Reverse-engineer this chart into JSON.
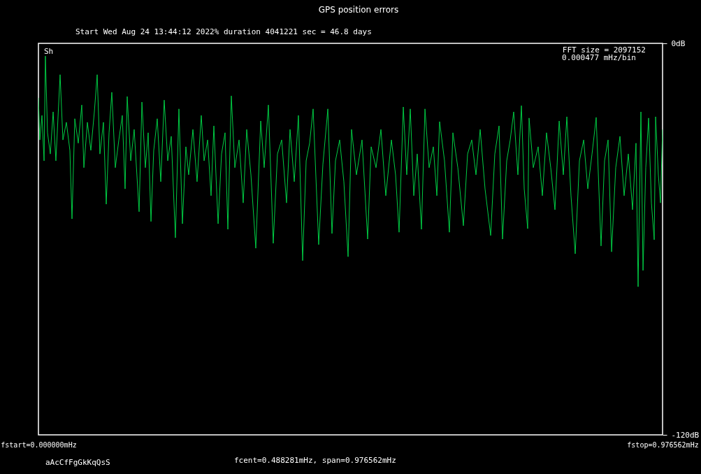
{
  "chart_data": {
    "type": "line",
    "title": "GPS position errors",
    "subtitle": "Start Wed Aug 24 13:44:12 2022%      duration 4041221 sec =  46.8 days",
    "annotations": [
      "Sh",
      "FFT size = 2097152",
      "0.000477 mHz/bin",
      "aAcCfFgGkKqQsS",
      "fcent=0.488281mHz, span=0.976562mHz"
    ],
    "xlim": [
      0,
      0.976562
    ],
    "ylim": [
      -120,
      0
    ],
    "xticks": [
      {
        "value": 0,
        "label": "fstart=0.000000mHz"
      },
      {
        "value": 0.976562,
        "label": "fstop=0.976562mHz"
      }
    ],
    "yticks": [
      {
        "value": -120,
        "label": "-120dB"
      },
      {
        "value": 0,
        "label": "0dB"
      }
    ],
    "grid": false,
    "marker": "none",
    "line_style": "solid",
    "x": [
      0,
      0.0022,
      0.0055,
      0.0088,
      0.0109,
      0.0142,
      0.0186,
      0.023,
      0.0273,
      0.0339,
      0.0383,
      0.0437,
      0.0492,
      0.0525,
      0.0569,
      0.0623,
      0.0678,
      0.0711,
      0.0766,
      0.082,
      0.0875,
      0.0919,
      0.0962,
      0.1017,
      0.1061,
      0.1105,
      0.1148,
      0.1203,
      0.1258,
      0.1312,
      0.1356,
      0.1389,
      0.1444,
      0.1498,
      0.1575,
      0.1619,
      0.1673,
      0.1717,
      0.1761,
      0.1804,
      0.1859,
      0.1914,
      0.1968,
      0.2023,
      0.2078,
      0.2143,
      0.2198,
      0.2253,
      0.2307,
      0.2351,
      0.2417,
      0.2482,
      0.2548,
      0.2592,
      0.2647,
      0.2701,
      0.2745,
      0.2811,
      0.2865,
      0.292,
      0.2964,
      0.3018,
      0.3073,
      0.3139,
      0.3204,
      0.3259,
      0.3325,
      0.3401,
      0.3478,
      0.3532,
      0.3598,
      0.3674,
      0.374,
      0.3806,
      0.3882,
      0.3937,
      0.4003,
      0.4068,
      0.4134,
      0.4189,
      0.4243,
      0.4298,
      0.4385,
      0.4451,
      0.4528,
      0.4593,
      0.4648,
      0.4713,
      0.4779,
      0.4845,
      0.4899,
      0.4976,
      0.5063,
      0.5151,
      0.5206,
      0.5282,
      0.5359,
      0.5435,
      0.5523,
      0.5588,
      0.5643,
      0.5709,
      0.5763,
      0.5818,
      0.5873,
      0.5927,
      0.5993,
      0.6048,
      0.6113,
      0.6179,
      0.6234,
      0.6277,
      0.6354,
      0.643,
      0.6485,
      0.6562,
      0.6649,
      0.6715,
      0.678,
      0.6846,
      0.6912,
      0.6988,
      0.7076,
      0.7141,
      0.7207,
      0.7262,
      0.7327,
      0.7382,
      0.7436,
      0.7502,
      0.7557,
      0.7601,
      0.7655,
      0.7677,
      0.7743,
      0.7819,
      0.7885,
      0.795,
      0.8016,
      0.8082,
      0.8148,
      0.8213,
      0.8268,
      0.8333,
      0.8399,
      0.8465,
      0.8531,
      0.8596,
      0.8662,
      0.8727,
      0.8803,
      0.8858,
      0.8913,
      0.8968,
      0.9033,
      0.9099,
      0.9164,
      0.923,
      0.9296,
      0.935,
      0.9383,
      0.9427,
      0.946,
      0.9503,
      0.9547,
      0.9591,
      0.9635,
      0.9657,
      0.97,
      0.9733,
      0.9765
    ],
    "series": [
      {
        "color": "#00cc44",
        "values": [
          -16.7,
          -29.6,
          -22.1,
          -36.0,
          -3.9,
          -27.4,
          -33.9,
          -21.0,
          -36.0,
          -9.6,
          -29.6,
          -24.2,
          -32.8,
          -53.8,
          -23.1,
          -30.6,
          -18.9,
          -38.1,
          -24.2,
          -32.8,
          -21.0,
          -9.6,
          -33.9,
          -24.2,
          -49.3,
          -27.4,
          -15.0,
          -38.1,
          -29.6,
          -22.1,
          -44.6,
          -16.3,
          -36.0,
          -26.4,
          -51.6,
          -18.0,
          -38.1,
          -27.4,
          -54.6,
          -32.8,
          -23.1,
          -42.4,
          -17.4,
          -36.0,
          -28.5,
          -59.6,
          -20.1,
          -55.3,
          -31.7,
          -40.3,
          -26.4,
          -42.4,
          -22.1,
          -36.0,
          -29.6,
          -46.7,
          -25.3,
          -55.3,
          -33.9,
          -27.4,
          -57.0,
          -16.1,
          -38.1,
          -29.6,
          -48.9,
          -26.4,
          -40.3,
          -62.8,
          -23.8,
          -38.1,
          -18.9,
          -61.3,
          -33.9,
          -29.6,
          -48.9,
          -26.4,
          -42.4,
          -22.1,
          -66.6,
          -36.0,
          -30.6,
          -20.1,
          -61.7,
          -37.1,
          -20.1,
          -58.3,
          -36.0,
          -29.6,
          -42.4,
          -65.4,
          -26.4,
          -40.3,
          -29.6,
          -60.0,
          -31.7,
          -38.1,
          -26.4,
          -46.7,
          -29.6,
          -40.3,
          -57.9,
          -19.5,
          -40.3,
          -20.1,
          -46.7,
          -33.9,
          -57.0,
          -20.1,
          -38.1,
          -31.7,
          -46.7,
          -24.0,
          -36.0,
          -57.9,
          -27.4,
          -38.1,
          -55.9,
          -33.9,
          -29.6,
          -40.3,
          -26.4,
          -44.6,
          -58.9,
          -33.9,
          -25.3,
          -60.0,
          -36.0,
          -29.6,
          -21.0,
          -40.3,
          -19.1,
          -44.6,
          -56.8,
          -22.9,
          -38.1,
          -31.7,
          -46.7,
          -27.4,
          -38.1,
          -51.0,
          -23.8,
          -40.3,
          -22.5,
          -46.7,
          -64.5,
          -36.0,
          -29.6,
          -44.6,
          -33.9,
          -22.7,
          -62.1,
          -36.0,
          -29.6,
          -63.9,
          -38.1,
          -28.5,
          -46.7,
          -33.9,
          -51.0,
          -30.6,
          -74.6,
          -21.0,
          -69.6,
          -38.1,
          -22.9,
          -48.9,
          -60.2,
          -22.5,
          -40.3,
          -48.9,
          -26.4
        ]
      }
    ]
  }
}
